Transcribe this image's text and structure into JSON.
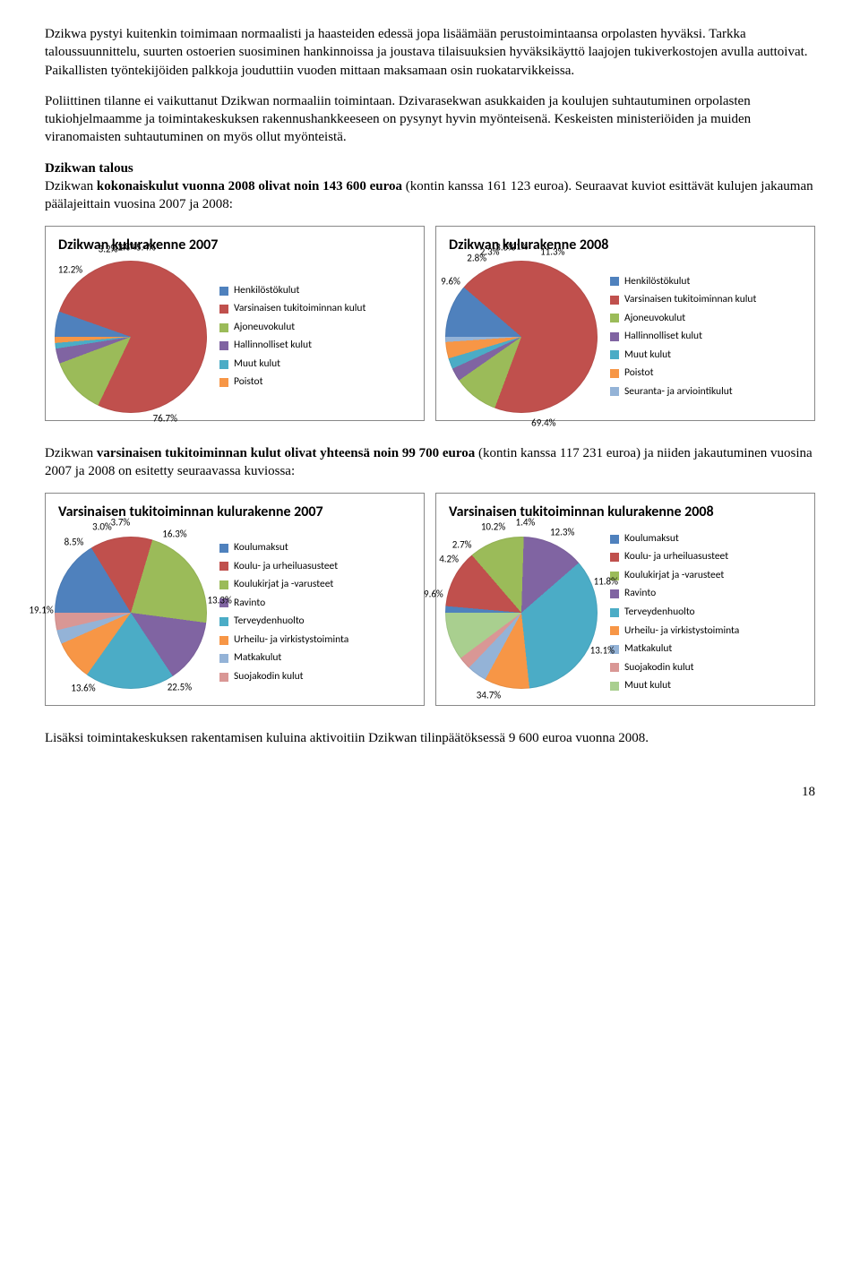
{
  "paragraphs": {
    "p1": "Dzikwa pystyi kuitenkin toimimaan normaalisti ja haasteiden edessä jopa lisäämään perustoimintaansa orpolasten hyväksi. Tarkka taloussuunnittelu, suurten ostoerien suosiminen hankinnoissa ja joustava tilaisuuksien hyväksikäyttö laajojen tukiverkostojen avulla auttoivat. Paikallisten työntekijöiden palkkoja jouduttiin vuoden mittaan maksamaan osin ruokatarvikkeissa.",
    "p2": "Poliittinen tilanne ei vaikuttanut Dzikwan normaaliin toimintaan. Dzivarasekwan asukkaiden ja koulujen suhtautuminen orpolasten tukiohjelmaamme ja toimintakeskuksen rakennushankkeeseen on pysynyt hyvin myönteisenä. Keskeisten ministeriöiden ja muiden viranomaisten suhtautuminen on myös ollut myönteistä.",
    "p3_bold": "Dzikwan talous",
    "p3a": "Dzikwan ",
    "p3b_bold": "kokonaiskulut vuonna 2008 olivat noin 143 600 euroa",
    "p3c": " (kontin kanssa 161 123 euroa). Seuraavat kuviot esittävät kulujen jakauman päälajeittain vuosina 2007 ja 2008:",
    "p4a": "Dzikwan ",
    "p4b_bold": "varsinaisen tukitoiminnan kulut olivat yhteensä noin 99 700 euroa",
    "p4c": " (kontin kanssa 117 231 euroa) ja niiden jakautuminen vuosina 2007 ja 2008 on esitetty seuraavassa kuviossa:",
    "p5": "Lisäksi toimintakeskuksen rakentamisen kuluina aktivoitiin Dzikwan tilinpäätöksessä 9 600 euroa vuonna 2008."
  },
  "palette": {
    "blue": "#4f81bd",
    "red": "#c0504d",
    "green": "#9bbb59",
    "purple": "#8064a2",
    "teal": "#4bacc6",
    "orange": "#f79646",
    "ltblue": "#94b3d7",
    "ltred": "#d99795"
  },
  "chart1": {
    "type": "pie",
    "title": "Dzikwan kulurakenne 2007",
    "title_fontsize": 16,
    "label_fontsize": 11,
    "background_color": "#ffffff",
    "border_color": "#888888",
    "legend": [
      {
        "label": "Henkilöstökulut",
        "color": "#4f81bd"
      },
      {
        "label": "Varsinaisen tukitoiminnan kulut",
        "color": "#c0504d"
      },
      {
        "label": "Ajoneuvokulut",
        "color": "#9bbb59"
      },
      {
        "label": "Hallinnolliset kulut",
        "color": "#8064a2"
      },
      {
        "label": "Muut kulut",
        "color": "#4bacc6"
      },
      {
        "label": "Poistot",
        "color": "#f79646"
      }
    ],
    "slices": [
      {
        "label": "5.4%",
        "value": 5.4,
        "color": "#4f81bd"
      },
      {
        "label": "76.7%",
        "value": 76.7,
        "color": "#c0504d"
      },
      {
        "label": "12.2%",
        "value": 12.2,
        "color": "#9bbb59"
      },
      {
        "label": "3.2%",
        "value": 3.2,
        "color": "#8064a2"
      },
      {
        "label": "1.2%",
        "value": 1.2,
        "color": "#4bacc6"
      },
      {
        "label": "1.3%",
        "value": 1.3,
        "color": "#f79646"
      }
    ]
  },
  "chart2": {
    "type": "pie",
    "title": "Dzikwan kulurakenne 2008",
    "title_fontsize": 16,
    "label_fontsize": 11,
    "background_color": "#ffffff",
    "border_color": "#888888",
    "legend": [
      {
        "label": "Henkilöstökulut",
        "color": "#4f81bd"
      },
      {
        "label": "Varsinaisen tukitoiminnan kulut",
        "color": "#c0504d"
      },
      {
        "label": "Ajoneuvokulut",
        "color": "#9bbb59"
      },
      {
        "label": "Hallinnolliset kulut",
        "color": "#8064a2"
      },
      {
        "label": "Muut kulut",
        "color": "#4bacc6"
      },
      {
        "label": "Poistot",
        "color": "#f79646"
      },
      {
        "label": "Seuranta- ja arviointikulut",
        "color": "#94b3d7"
      }
    ],
    "slices": [
      {
        "label": "11.3%",
        "value": 11.3,
        "color": "#4f81bd"
      },
      {
        "label": "69.4%",
        "value": 69.4,
        "color": "#c0504d"
      },
      {
        "label": "9.6%",
        "value": 9.6,
        "color": "#9bbb59"
      },
      {
        "label": "2.8%",
        "value": 2.8,
        "color": "#8064a2"
      },
      {
        "label": "2.3%",
        "value": 2.3,
        "color": "#4bacc6"
      },
      {
        "label": "3.5%",
        "value": 3.5,
        "color": "#f79646"
      },
      {
        "label": "1.1%",
        "value": 1.1,
        "color": "#94b3d7"
      }
    ]
  },
  "chart3": {
    "type": "pie",
    "title": "Varsinaisen tukitoiminnan kulurakenne 2007",
    "title_fontsize": 16,
    "label_fontsize": 11,
    "background_color": "#ffffff",
    "border_color": "#888888",
    "legend": [
      {
        "label": "Koulumaksut",
        "color": "#4f81bd"
      },
      {
        "label": "Koulu- ja urheiluasusteet",
        "color": "#c0504d"
      },
      {
        "label": "Koulukirjat ja -varusteet",
        "color": "#9bbb59"
      },
      {
        "label": "Ravinto",
        "color": "#8064a2"
      },
      {
        "label": "Terveydenhuolto",
        "color": "#4bacc6"
      },
      {
        "label": "Urheilu- ja virkistystoiminta",
        "color": "#f79646"
      },
      {
        "label": "Matkakulut",
        "color": "#94b3d7"
      },
      {
        "label": "Suojakodin kulut",
        "color": "#d99795"
      }
    ],
    "slices": [
      {
        "label": "16.3%",
        "value": 16.3,
        "color": "#4f81bd"
      },
      {
        "label": "13.3%",
        "value": 13.3,
        "color": "#c0504d"
      },
      {
        "label": "22.5%",
        "value": 22.5,
        "color": "#9bbb59"
      },
      {
        "label": "13.6%",
        "value": 13.6,
        "color": "#8064a2"
      },
      {
        "label": "19.1%",
        "value": 19.1,
        "color": "#4bacc6"
      },
      {
        "label": "8.5%",
        "value": 8.5,
        "color": "#f79646"
      },
      {
        "label": "3.0%",
        "value": 3.0,
        "color": "#94b3d7"
      },
      {
        "label": "3.7%",
        "value": 3.7,
        "color": "#d99795"
      }
    ]
  },
  "chart4": {
    "type": "pie",
    "title": "Varsinaisen tukitoiminnan kulurakenne 2008",
    "title_fontsize": 16,
    "label_fontsize": 11,
    "background_color": "#ffffff",
    "border_color": "#888888",
    "legend": [
      {
        "label": "Koulumaksut",
        "color": "#4f81bd"
      },
      {
        "label": "Koulu- ja urheiluasusteet",
        "color": "#c0504d"
      },
      {
        "label": "Koulukirjat ja -varusteet",
        "color": "#9bbb59"
      },
      {
        "label": "Ravinto",
        "color": "#8064a2"
      },
      {
        "label": "Terveydenhuolto",
        "color": "#4bacc6"
      },
      {
        "label": "Urheilu- ja virkistystoiminta",
        "color": "#f79646"
      },
      {
        "label": "Matkakulut",
        "color": "#94b3d7"
      },
      {
        "label": "Suojakodin kulut",
        "color": "#d99795"
      },
      {
        "label": "Muut kulut",
        "color": "#a9cf8f"
      }
    ],
    "slices": [
      {
        "label": "1.4%",
        "value": 1.4,
        "color": "#4f81bd"
      },
      {
        "label": "12.3%",
        "value": 12.3,
        "color": "#c0504d"
      },
      {
        "label": "11.8%",
        "value": 11.8,
        "color": "#9bbb59"
      },
      {
        "label": "13.1%",
        "value": 13.1,
        "color": "#8064a2"
      },
      {
        "label": "34.7%",
        "value": 34.7,
        "color": "#4bacc6"
      },
      {
        "label": "9.6%",
        "value": 9.6,
        "color": "#f79646"
      },
      {
        "label": "4.2%",
        "value": 4.2,
        "color": "#94b3d7"
      },
      {
        "label": "2.7%",
        "value": 2.7,
        "color": "#d99795"
      },
      {
        "label": "10.2%",
        "value": 10.2,
        "color": "#a9cf8f"
      }
    ]
  },
  "page_number": "18"
}
